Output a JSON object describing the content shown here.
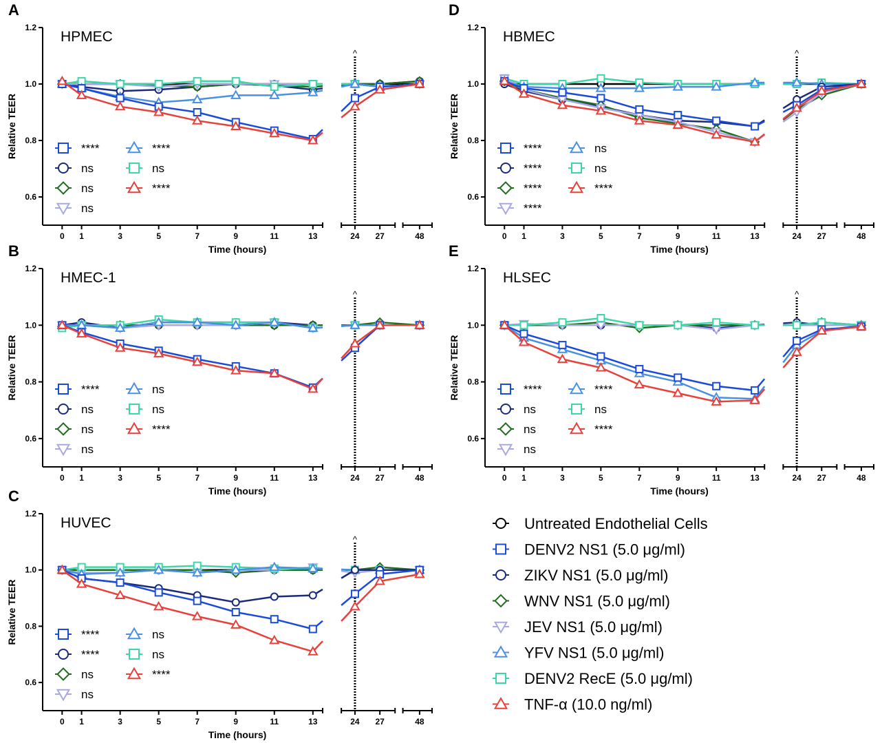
{
  "legend": [
    {
      "key": "untreated",
      "label": "Untreated Endothelial Cells"
    },
    {
      "key": "denv2",
      "label": "DENV2 NS1 (5.0 μg/ml)"
    },
    {
      "key": "zikv",
      "label": "ZIKV NS1 (5.0 μg/ml)"
    },
    {
      "key": "wnv",
      "label": "WNV NS1 (5.0 μg/ml)"
    },
    {
      "key": "jev",
      "label": "JEV NS1 (5.0 μg/ml)"
    },
    {
      "key": "yfv",
      "label": "YFV NS1 (5.0 μg/ml)"
    },
    {
      "key": "rece",
      "label": "DENV2 RecE (5.0 μg/ml)"
    },
    {
      "key": "tnf",
      "label": "TNF-α (10.0 ng/ml)"
    }
  ],
  "series_style": {
    "untreated": {
      "color": "#000000",
      "marker": "circle"
    },
    "denv2": {
      "color": "#1a4bd8",
      "marker": "square"
    },
    "zikv": {
      "color": "#1b2a7a",
      "marker": "circle"
    },
    "wnv": {
      "color": "#1f6e1f",
      "marker": "diamond"
    },
    "jev": {
      "color": "#a9a8e6",
      "marker": "triangle-down"
    },
    "yfv": {
      "color": "#4a90e2",
      "marker": "triangle-up"
    },
    "rece": {
      "color": "#3dd6a8",
      "marker": "square"
    },
    "tnf": {
      "color": "#e8403a",
      "marker": "triangle-up"
    }
  },
  "chart_data": [
    {
      "panel": "A",
      "title": "HPMEC",
      "type": "line",
      "xlabel": "Time (hours)",
      "ylabel": "Relative TEER",
      "ylim": [
        0.5,
        1.2
      ],
      "yticks": [
        "0.6",
        "0.8",
        "1.0",
        "1.2"
      ],
      "x": [
        0,
        1,
        3,
        5,
        7,
        9,
        11,
        13,
        24,
        27,
        48
      ],
      "marker_text": "^",
      "marker_x": 24,
      "significance": [
        {
          "key": "denv2",
          "text": "****"
        },
        {
          "key": "zikv",
          "text": "ns"
        },
        {
          "key": "wnv",
          "text": "ns"
        },
        {
          "key": "jev",
          "text": "ns"
        },
        {
          "key": "yfv",
          "text": "****"
        },
        {
          "key": "rece",
          "text": "ns"
        },
        {
          "key": "tnf",
          "text": "****"
        }
      ],
      "series": [
        {
          "key": "untreated",
          "values": [
            1.0,
            1.0,
            1.0,
            1.0,
            1.0,
            1.0,
            1.0,
            1.0,
            1.0,
            1.0,
            1.0
          ]
        },
        {
          "key": "zikv",
          "values": [
            1.0,
            0.99,
            0.975,
            0.98,
            0.99,
            1.0,
            0.995,
            0.98,
            1.0,
            1.0,
            1.01
          ]
        },
        {
          "key": "wnv",
          "values": [
            1.0,
            1.0,
            1.0,
            0.995,
            0.99,
            1.0,
            0.995,
            0.99,
            1.0,
            1.0,
            1.01
          ]
        },
        {
          "key": "jev",
          "values": [
            1.0,
            1.0,
            1.0,
            0.99,
            1.0,
            1.0,
            1.0,
            1.0,
            1.0,
            0.99,
            1.0
          ]
        },
        {
          "key": "rece",
          "values": [
            1.0,
            1.01,
            1.0,
            1.0,
            1.01,
            1.01,
            0.99,
            1.0,
            1.0,
            0.99,
            1.0
          ]
        },
        {
          "key": "yfv",
          "values": [
            1.0,
            0.985,
            0.955,
            0.935,
            0.945,
            0.96,
            0.96,
            0.97,
            1.0,
            0.99,
            1.0
          ]
        },
        {
          "key": "denv2",
          "values": [
            1.0,
            0.985,
            0.95,
            0.92,
            0.9,
            0.865,
            0.835,
            0.805,
            0.95,
            0.99,
            1.0
          ]
        },
        {
          "key": "tnf",
          "values": [
            1.01,
            0.96,
            0.92,
            0.9,
            0.87,
            0.85,
            0.825,
            0.8,
            0.92,
            0.98,
            1.0
          ]
        }
      ]
    },
    {
      "panel": "B",
      "title": "HMEC-1",
      "type": "line",
      "xlabel": "Time (hours)",
      "ylabel": "Relative TEER",
      "ylim": [
        0.5,
        1.2
      ],
      "yticks": [
        "0.6",
        "0.8",
        "1.0",
        "1.2"
      ],
      "x": [
        0,
        1,
        3,
        5,
        7,
        9,
        11,
        13,
        24,
        27,
        48
      ],
      "marker_text": "^",
      "marker_x": 24,
      "significance": [
        {
          "key": "denv2",
          "text": "****"
        },
        {
          "key": "zikv",
          "text": "ns"
        },
        {
          "key": "wnv",
          "text": "ns"
        },
        {
          "key": "jev",
          "text": "ns"
        },
        {
          "key": "yfv",
          "text": "ns"
        },
        {
          "key": "rece",
          "text": "ns"
        },
        {
          "key": "tnf",
          "text": "****"
        }
      ],
      "series": [
        {
          "key": "untreated",
          "values": [
            1.0,
            1.0,
            1.0,
            1.0,
            1.0,
            1.0,
            1.0,
            1.0,
            1.0,
            1.0,
            1.0
          ]
        },
        {
          "key": "zikv",
          "values": [
            1.0,
            1.01,
            0.99,
            1.01,
            1.01,
            1.01,
            1.01,
            1.0,
            1.0,
            1.0,
            1.0
          ]
        },
        {
          "key": "wnv",
          "values": [
            0.995,
            1.0,
            1.0,
            1.0,
            1.0,
            1.0,
            1.0,
            1.0,
            1.0,
            1.01,
            1.0
          ]
        },
        {
          "key": "jev",
          "values": [
            1.0,
            1.0,
            0.99,
            1.0,
            1.0,
            1.0,
            1.01,
            0.99,
            1.0,
            1.0,
            1.0
          ]
        },
        {
          "key": "rece",
          "values": [
            0.99,
            1.0,
            1.0,
            1.02,
            1.01,
            1.01,
            1.01,
            0.99,
            1.0,
            1.0,
            1.0
          ]
        },
        {
          "key": "yfv",
          "values": [
            1.0,
            1.0,
            0.99,
            1.01,
            1.01,
            1.0,
            1.01,
            0.99,
            1.0,
            1.0,
            1.0
          ]
        },
        {
          "key": "denv2",
          "values": [
            1.0,
            0.975,
            0.935,
            0.91,
            0.88,
            0.855,
            0.83,
            0.78,
            0.92,
            1.0,
            1.0
          ]
        },
        {
          "key": "tnf",
          "values": [
            1.0,
            0.97,
            0.92,
            0.9,
            0.87,
            0.84,
            0.83,
            0.775,
            0.935,
            1.0,
            1.0
          ]
        }
      ]
    },
    {
      "panel": "C",
      "title": "HUVEC",
      "type": "line",
      "xlabel": "Time (hours)",
      "ylabel": "Relative TEER",
      "ylim": [
        0.5,
        1.2
      ],
      "yticks": [
        "0.6",
        "0.8",
        "1.0",
        "1.2"
      ],
      "x": [
        0,
        1,
        3,
        5,
        7,
        9,
        11,
        13,
        24,
        27,
        48
      ],
      "marker_text": "^",
      "marker_x": 24,
      "significance": [
        {
          "key": "denv2",
          "text": "****"
        },
        {
          "key": "zikv",
          "text": "****"
        },
        {
          "key": "wnv",
          "text": "ns"
        },
        {
          "key": "jev",
          "text": "ns"
        },
        {
          "key": "yfv",
          "text": "ns"
        },
        {
          "key": "rece",
          "text": "ns"
        },
        {
          "key": "tnf",
          "text": "****"
        }
      ],
      "series": [
        {
          "key": "untreated",
          "values": [
            1.0,
            1.0,
            1.0,
            1.0,
            1.0,
            1.0,
            1.0,
            1.0,
            1.0,
            1.0,
            1.0
          ]
        },
        {
          "key": "wnv",
          "values": [
            1.0,
            1.0,
            1.0,
            1.0,
            1.0,
            0.99,
            1.0,
            1.0,
            1.0,
            1.01,
            1.0
          ]
        },
        {
          "key": "jev",
          "values": [
            1.0,
            0.99,
            0.99,
            1.0,
            0.99,
            1.0,
            1.0,
            1.01,
            0.99,
            1.0,
            1.0
          ]
        },
        {
          "key": "rece",
          "values": [
            1.0,
            1.01,
            1.01,
            1.01,
            1.015,
            1.01,
            1.005,
            1.005,
            1.0,
            1.0,
            1.0
          ]
        },
        {
          "key": "yfv",
          "values": [
            1.0,
            0.985,
            0.99,
            1.0,
            0.99,
            1.0,
            1.01,
            1.005,
            1.0,
            1.0,
            1.0
          ]
        },
        {
          "key": "zikv",
          "values": [
            1.0,
            0.97,
            0.955,
            0.935,
            0.91,
            0.885,
            0.905,
            0.91,
            1.0,
            1.0,
            1.0
          ]
        },
        {
          "key": "denv2",
          "values": [
            1.0,
            0.97,
            0.955,
            0.92,
            0.89,
            0.85,
            0.825,
            0.79,
            0.915,
            0.985,
            1.0
          ]
        },
        {
          "key": "tnf",
          "values": [
            1.0,
            0.95,
            0.91,
            0.87,
            0.835,
            0.805,
            0.75,
            0.71,
            0.87,
            0.96,
            0.985
          ]
        }
      ]
    },
    {
      "panel": "D",
      "title": "HBMEC",
      "type": "line",
      "xlabel": "Time (hours)",
      "ylabel": "Relative TEER",
      "ylim": [
        0.5,
        1.2
      ],
      "yticks": [
        "0.6",
        "0.8",
        "1.0",
        "1.2"
      ],
      "x": [
        0,
        1,
        3,
        5,
        7,
        9,
        11,
        13,
        24,
        27,
        48
      ],
      "marker_text": "^",
      "marker_x": 24,
      "significance": [
        {
          "key": "denv2",
          "text": "****"
        },
        {
          "key": "zikv",
          "text": "****"
        },
        {
          "key": "wnv",
          "text": "****"
        },
        {
          "key": "jev",
          "text": "****"
        },
        {
          "key": "yfv",
          "text": "ns"
        },
        {
          "key": "rece",
          "text": "ns"
        },
        {
          "key": "tnf",
          "text": "****"
        }
      ],
      "series": [
        {
          "key": "untreated",
          "values": [
            1.0,
            1.0,
            1.0,
            1.0,
            1.0,
            1.0,
            1.0,
            1.0,
            1.0,
            1.0,
            1.0
          ]
        },
        {
          "key": "rece",
          "values": [
            1.02,
            1.0,
            1.0,
            1.02,
            1.005,
            1.0,
            1.0,
            1.0,
            1.0,
            1.005,
            1.0
          ]
        },
        {
          "key": "yfv",
          "values": [
            1.015,
            0.99,
            0.985,
            0.985,
            0.985,
            0.99,
            0.99,
            1.005,
            1.005,
            1.0,
            1.0
          ]
        },
        {
          "key": "zikv",
          "values": [
            1.0,
            0.975,
            0.945,
            0.92,
            0.89,
            0.87,
            0.865,
            0.85,
            0.945,
            0.99,
            1.0
          ]
        },
        {
          "key": "wnv",
          "values": [
            1.01,
            0.98,
            0.95,
            0.925,
            0.88,
            0.86,
            0.84,
            0.795,
            0.91,
            0.96,
            1.0
          ]
        },
        {
          "key": "jev",
          "values": [
            1.02,
            0.98,
            0.945,
            0.915,
            0.89,
            0.865,
            0.83,
            0.795,
            0.9,
            0.97,
            1.0
          ]
        },
        {
          "key": "denv2",
          "values": [
            1.01,
            0.985,
            0.97,
            0.95,
            0.91,
            0.89,
            0.87,
            0.85,
            0.925,
            0.98,
            1.0
          ]
        },
        {
          "key": "tnf",
          "values": [
            1.01,
            0.965,
            0.925,
            0.905,
            0.87,
            0.855,
            0.82,
            0.795,
            0.915,
            0.975,
            1.0
          ]
        }
      ]
    },
    {
      "panel": "E",
      "title": "HLSEC",
      "type": "line",
      "xlabel": "Time (hours)",
      "ylabel": "Relative TEER",
      "ylim": [
        0.5,
        1.2
      ],
      "yticks": [
        "0.6",
        "0.8",
        "1.0",
        "1.2"
      ],
      "x": [
        0,
        1,
        3,
        5,
        7,
        9,
        11,
        13,
        24,
        27,
        48
      ],
      "marker_text": "^",
      "marker_x": 24,
      "significance": [
        {
          "key": "denv2",
          "text": "****"
        },
        {
          "key": "zikv",
          "text": "ns"
        },
        {
          "key": "wnv",
          "text": "ns"
        },
        {
          "key": "jev",
          "text": "ns"
        },
        {
          "key": "yfv",
          "text": "****"
        },
        {
          "key": "rece",
          "text": "ns"
        },
        {
          "key": "tnf",
          "text": "****"
        }
      ],
      "series": [
        {
          "key": "untreated",
          "values": [
            1.0,
            1.0,
            1.0,
            1.0,
            1.0,
            1.0,
            1.0,
            1.0,
            1.0,
            1.0,
            1.0
          ]
        },
        {
          "key": "zikv",
          "values": [
            1.0,
            1.0,
            1.0,
            1.0,
            1.0,
            1.0,
            0.99,
            1.0,
            1.01,
            1.0,
            1.0
          ]
        },
        {
          "key": "wnv",
          "values": [
            1.0,
            1.0,
            1.0,
            1.01,
            0.99,
            1.0,
            1.0,
            1.0,
            1.0,
            1.01,
            1.0
          ]
        },
        {
          "key": "jev",
          "values": [
            1.0,
            1.005,
            1.0,
            1.0,
            1.0,
            1.0,
            0.985,
            1.0,
            1.0,
            1.0,
            1.0
          ]
        },
        {
          "key": "rece",
          "values": [
            1.0,
            1.0,
            1.01,
            1.025,
            1.0,
            1.0,
            1.01,
            1.0,
            1.0,
            1.01,
            1.0
          ]
        },
        {
          "key": "yfv",
          "values": [
            1.0,
            0.955,
            0.915,
            0.875,
            0.83,
            0.8,
            0.745,
            0.74,
            0.93,
            0.98,
            1.0
          ]
        },
        {
          "key": "denv2",
          "values": [
            1.0,
            0.97,
            0.93,
            0.89,
            0.845,
            0.815,
            0.785,
            0.77,
            0.945,
            0.985,
            0.995
          ]
        },
        {
          "key": "tnf",
          "values": [
            1.0,
            0.94,
            0.88,
            0.85,
            0.79,
            0.76,
            0.73,
            0.735,
            0.905,
            0.98,
            0.995
          ]
        }
      ]
    }
  ]
}
